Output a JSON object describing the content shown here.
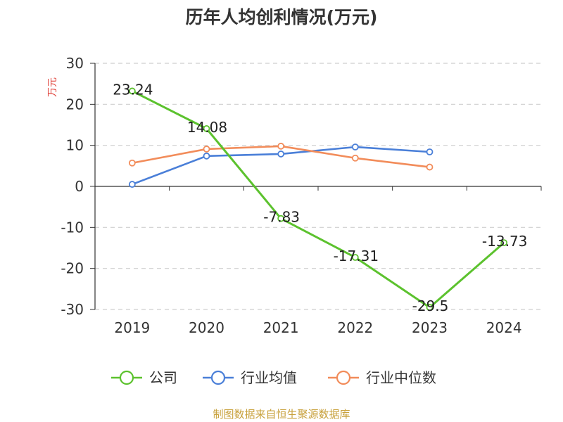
{
  "chart_data": {
    "type": "line",
    "title": "历年人均创利情况(万元)",
    "ylabel": "万元",
    "xlabel": "",
    "categories": [
      "2019",
      "2020",
      "2021",
      "2022",
      "2023",
      "2024"
    ],
    "ylim": [
      -30,
      30
    ],
    "yticks": [
      30,
      20,
      10,
      0,
      -10,
      -20,
      -30
    ],
    "grid": true,
    "legend_position": "bottom",
    "series": [
      {
        "name": "公司",
        "color": "#5cc22e",
        "values": [
          23.24,
          14.08,
          -7.83,
          -17.31,
          -29.5,
          -13.73
        ],
        "labels": [
          "23.24",
          "14.08",
          "-7.83",
          "-17.31",
          "-29.5",
          "-13.73"
        ]
      },
      {
        "name": "行业均值",
        "color": "#4a7fd8",
        "values": [
          0.5,
          7.4,
          7.9,
          9.6,
          8.4,
          null
        ]
      },
      {
        "name": "行业中位数",
        "color": "#f28c5a",
        "values": [
          5.7,
          9.1,
          9.8,
          6.9,
          4.7,
          null
        ]
      }
    ]
  },
  "source": "制图数据来自恒生聚源数据库"
}
